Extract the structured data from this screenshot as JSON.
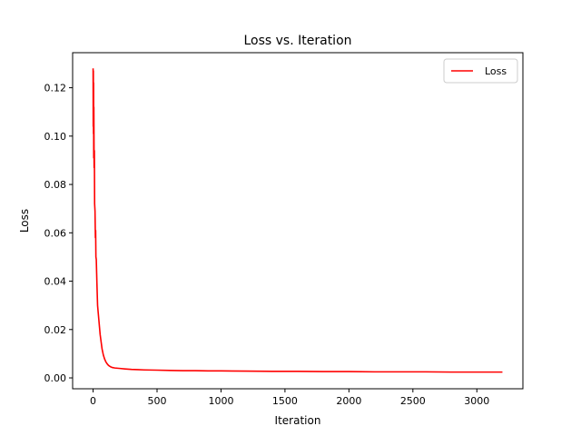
{
  "chart_data": {
    "type": "line",
    "title": "Loss vs. Iteration",
    "xlabel": "Iteration",
    "ylabel": "Loss",
    "xlim": [
      -160,
      3360
    ],
    "ylim": [
      -0.0045,
      0.1345
    ],
    "xticks": [
      0,
      500,
      1000,
      1500,
      2000,
      2500,
      3000
    ],
    "yticks": [
      0.0,
      0.02,
      0.04,
      0.06,
      0.08,
      0.1,
      0.12
    ],
    "ytick_format_decimals": 2,
    "grid": false,
    "legend": "top-right",
    "series": [
      {
        "name": "Loss",
        "color": "#ff0000",
        "x": [
          0,
          1,
          2,
          3,
          4,
          5,
          6,
          8,
          10,
          12,
          15,
          18,
          20,
          22,
          25,
          28,
          30,
          35,
          40,
          45,
          50,
          55,
          60,
          70,
          80,
          90,
          100,
          110,
          120,
          130,
          140,
          150,
          170,
          190,
          210,
          250,
          300,
          350,
          400,
          500,
          600,
          700,
          800,
          900,
          1000,
          1200,
          1400,
          1600,
          1800,
          2000,
          2200,
          2400,
          2600,
          2800,
          3000,
          3200
        ],
        "y": [
          0.128,
          0.104,
          0.127,
          0.101,
          0.122,
          0.091,
          0.112,
          0.087,
          0.094,
          0.072,
          0.069,
          0.058,
          0.061,
          0.05,
          0.049,
          0.043,
          0.039,
          0.03,
          0.027,
          0.024,
          0.021,
          0.018,
          0.016,
          0.012,
          0.0095,
          0.0078,
          0.0066,
          0.0058,
          0.0052,
          0.0048,
          0.0045,
          0.0043,
          0.0041,
          0.004,
          0.0039,
          0.0037,
          0.0035,
          0.0034,
          0.0033,
          0.0032,
          0.0031,
          0.003,
          0.003,
          0.0029,
          0.0029,
          0.0028,
          0.0027,
          0.0027,
          0.0026,
          0.0026,
          0.0025,
          0.0025,
          0.0025,
          0.0024,
          0.0024,
          0.0024
        ]
      }
    ]
  }
}
